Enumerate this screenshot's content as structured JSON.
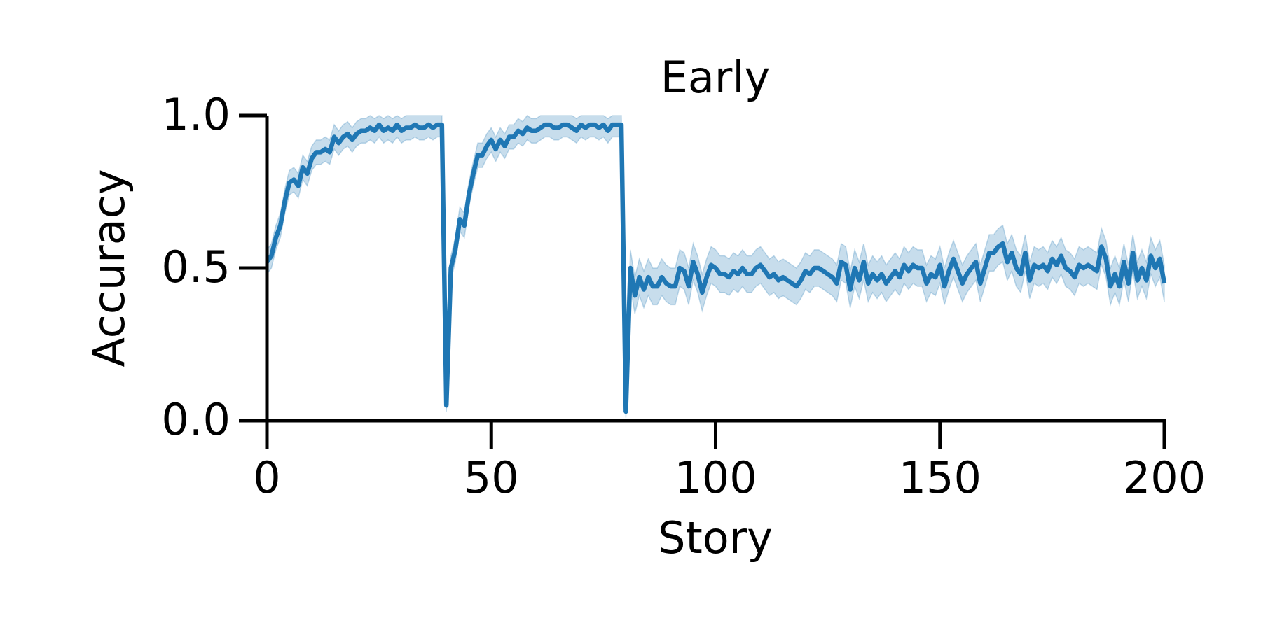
{
  "chart_data": {
    "type": "line",
    "title": "Early",
    "xlabel": "Story",
    "ylabel": "Accuracy",
    "x": [
      0,
      1,
      2,
      3,
      4,
      5,
      6,
      7,
      8,
      9,
      10,
      11,
      12,
      13,
      14,
      15,
      16,
      17,
      18,
      19,
      20,
      21,
      22,
      23,
      24,
      25,
      26,
      27,
      28,
      29,
      30,
      31,
      32,
      33,
      34,
      35,
      36,
      37,
      38,
      39,
      40,
      41,
      42,
      43,
      44,
      45,
      46,
      47,
      48,
      49,
      50,
      51,
      52,
      53,
      54,
      55,
      56,
      57,
      58,
      59,
      60,
      61,
      62,
      63,
      64,
      65,
      66,
      67,
      68,
      69,
      70,
      71,
      72,
      73,
      74,
      75,
      76,
      77,
      78,
      79,
      80,
      81,
      82,
      83,
      84,
      85,
      86,
      87,
      88,
      89,
      90,
      91,
      92,
      93,
      94,
      95,
      96,
      97,
      98,
      99,
      100,
      101,
      102,
      103,
      104,
      105,
      106,
      107,
      108,
      109,
      110,
      111,
      112,
      113,
      114,
      115,
      116,
      117,
      118,
      119,
      120,
      121,
      122,
      123,
      124,
      125,
      126,
      127,
      128,
      129,
      130,
      131,
      132,
      133,
      134,
      135,
      136,
      137,
      138,
      139,
      140,
      141,
      142,
      143,
      144,
      145,
      146,
      147,
      148,
      149,
      150,
      151,
      152,
      153,
      154,
      155,
      156,
      157,
      158,
      159,
      160,
      161,
      162,
      163,
      164,
      165,
      166,
      167,
      168,
      169,
      170,
      171,
      172,
      173,
      174,
      175,
      176,
      177,
      178,
      179,
      180,
      181,
      182,
      183,
      184,
      185,
      186,
      187,
      188,
      189,
      190,
      191,
      192,
      193,
      194,
      195,
      196,
      197,
      198,
      199,
      200
    ],
    "series": [
      {
        "color": "#1f77b4",
        "values": [
          0.52,
          0.54,
          0.6,
          0.64,
          0.72,
          0.78,
          0.79,
          0.77,
          0.83,
          0.81,
          0.86,
          0.88,
          0.88,
          0.89,
          0.88,
          0.93,
          0.91,
          0.93,
          0.94,
          0.92,
          0.94,
          0.95,
          0.95,
          0.96,
          0.95,
          0.97,
          0.95,
          0.96,
          0.95,
          0.97,
          0.95,
          0.96,
          0.96,
          0.97,
          0.96,
          0.96,
          0.97,
          0.96,
          0.97,
          0.97,
          0.05,
          0.5,
          0.56,
          0.66,
          0.64,
          0.74,
          0.81,
          0.87,
          0.87,
          0.9,
          0.92,
          0.89,
          0.92,
          0.9,
          0.93,
          0.93,
          0.95,
          0.94,
          0.96,
          0.95,
          0.95,
          0.96,
          0.97,
          0.97,
          0.96,
          0.96,
          0.97,
          0.97,
          0.96,
          0.95,
          0.97,
          0.96,
          0.97,
          0.97,
          0.96,
          0.97,
          0.95,
          0.97,
          0.97,
          0.97,
          0.03,
          0.5,
          0.41,
          0.47,
          0.43,
          0.47,
          0.44,
          0.44,
          0.47,
          0.45,
          0.44,
          0.44,
          0.5,
          0.49,
          0.44,
          0.52,
          0.48,
          0.42,
          0.47,
          0.51,
          0.5,
          0.48,
          0.48,
          0.47,
          0.49,
          0.48,
          0.5,
          0.48,
          0.48,
          0.5,
          0.51,
          0.49,
          0.47,
          0.48,
          0.46,
          0.47,
          0.46,
          0.45,
          0.44,
          0.46,
          0.49,
          0.48,
          0.5,
          0.5,
          0.49,
          0.48,
          0.47,
          0.45,
          0.52,
          0.51,
          0.43,
          0.5,
          0.46,
          0.52,
          0.45,
          0.48,
          0.46,
          0.48,
          0.45,
          0.47,
          0.49,
          0.47,
          0.51,
          0.49,
          0.51,
          0.5,
          0.5,
          0.45,
          0.48,
          0.47,
          0.51,
          0.44,
          0.49,
          0.53,
          0.49,
          0.45,
          0.48,
          0.5,
          0.52,
          0.45,
          0.5,
          0.55,
          0.55,
          0.57,
          0.58,
          0.52,
          0.55,
          0.5,
          0.48,
          0.55,
          0.46,
          0.51,
          0.5,
          0.51,
          0.49,
          0.53,
          0.51,
          0.54,
          0.5,
          0.49,
          0.47,
          0.51,
          0.5,
          0.51,
          0.5,
          0.49,
          0.57,
          0.53,
          0.44,
          0.48,
          0.44,
          0.52,
          0.45,
          0.55,
          0.46,
          0.5,
          0.46,
          0.54,
          0.5,
          0.53,
          0.45
        ],
        "lower": [
          0.48,
          0.5,
          0.56,
          0.6,
          0.68,
          0.74,
          0.75,
          0.73,
          0.79,
          0.77,
          0.82,
          0.84,
          0.84,
          0.85,
          0.84,
          0.89,
          0.87,
          0.89,
          0.9,
          0.88,
          0.9,
          0.91,
          0.91,
          0.92,
          0.91,
          0.93,
          0.91,
          0.92,
          0.91,
          0.93,
          0.91,
          0.92,
          0.92,
          0.93,
          0.92,
          0.92,
          0.93,
          0.92,
          0.93,
          0.93,
          0.03,
          0.46,
          0.52,
          0.62,
          0.6,
          0.7,
          0.77,
          0.83,
          0.83,
          0.86,
          0.88,
          0.85,
          0.88,
          0.86,
          0.89,
          0.89,
          0.91,
          0.9,
          0.92,
          0.91,
          0.91,
          0.92,
          0.93,
          0.93,
          0.92,
          0.92,
          0.93,
          0.93,
          0.92,
          0.91,
          0.93,
          0.92,
          0.93,
          0.93,
          0.92,
          0.93,
          0.91,
          0.93,
          0.93,
          0.93,
          0.01,
          0.44,
          0.35,
          0.41,
          0.37,
          0.41,
          0.38,
          0.38,
          0.41,
          0.39,
          0.38,
          0.38,
          0.44,
          0.43,
          0.38,
          0.46,
          0.42,
          0.36,
          0.41,
          0.45,
          0.44,
          0.42,
          0.42,
          0.41,
          0.43,
          0.42,
          0.44,
          0.42,
          0.42,
          0.44,
          0.45,
          0.43,
          0.41,
          0.42,
          0.4,
          0.41,
          0.4,
          0.39,
          0.38,
          0.4,
          0.43,
          0.42,
          0.44,
          0.44,
          0.43,
          0.42,
          0.41,
          0.39,
          0.46,
          0.45,
          0.37,
          0.44,
          0.4,
          0.46,
          0.39,
          0.42,
          0.4,
          0.42,
          0.39,
          0.41,
          0.43,
          0.41,
          0.45,
          0.43,
          0.45,
          0.44,
          0.44,
          0.39,
          0.42,
          0.41,
          0.45,
          0.38,
          0.43,
          0.47,
          0.43,
          0.39,
          0.42,
          0.44,
          0.46,
          0.39,
          0.44,
          0.49,
          0.49,
          0.51,
          0.52,
          0.46,
          0.49,
          0.44,
          0.42,
          0.49,
          0.4,
          0.45,
          0.44,
          0.45,
          0.43,
          0.47,
          0.45,
          0.48,
          0.44,
          0.43,
          0.41,
          0.45,
          0.44,
          0.45,
          0.44,
          0.43,
          0.51,
          0.47,
          0.38,
          0.42,
          0.38,
          0.46,
          0.39,
          0.49,
          0.4,
          0.44,
          0.4,
          0.48,
          0.44,
          0.47,
          0.39
        ],
        "upper": [
          0.56,
          0.58,
          0.64,
          0.68,
          0.76,
          0.82,
          0.83,
          0.81,
          0.87,
          0.85,
          0.9,
          0.92,
          0.92,
          0.93,
          0.92,
          0.97,
          0.95,
          0.97,
          0.98,
          0.96,
          0.98,
          0.99,
          0.99,
          1.0,
          0.99,
          1.0,
          0.99,
          1.0,
          0.99,
          1.0,
          0.99,
          1.0,
          1.0,
          1.0,
          1.0,
          1.0,
          1.0,
          1.0,
          1.0,
          1.0,
          0.07,
          0.54,
          0.6,
          0.7,
          0.68,
          0.78,
          0.85,
          0.91,
          0.91,
          0.94,
          0.96,
          0.93,
          0.96,
          0.94,
          0.97,
          0.97,
          0.99,
          0.98,
          1.0,
          0.99,
          0.99,
          1.0,
          1.0,
          1.0,
          1.0,
          1.0,
          1.0,
          1.0,
          1.0,
          0.99,
          1.0,
          1.0,
          1.0,
          1.0,
          1.0,
          1.0,
          0.99,
          1.0,
          1.0,
          1.0,
          0.05,
          0.56,
          0.47,
          0.53,
          0.49,
          0.53,
          0.5,
          0.5,
          0.53,
          0.51,
          0.5,
          0.5,
          0.56,
          0.55,
          0.5,
          0.58,
          0.54,
          0.48,
          0.53,
          0.57,
          0.56,
          0.54,
          0.54,
          0.53,
          0.55,
          0.54,
          0.56,
          0.54,
          0.54,
          0.56,
          0.57,
          0.55,
          0.53,
          0.54,
          0.52,
          0.53,
          0.52,
          0.51,
          0.5,
          0.52,
          0.55,
          0.54,
          0.56,
          0.56,
          0.55,
          0.54,
          0.53,
          0.51,
          0.58,
          0.57,
          0.49,
          0.56,
          0.52,
          0.58,
          0.51,
          0.54,
          0.52,
          0.54,
          0.51,
          0.53,
          0.55,
          0.53,
          0.57,
          0.55,
          0.57,
          0.56,
          0.56,
          0.51,
          0.54,
          0.53,
          0.57,
          0.5,
          0.55,
          0.59,
          0.55,
          0.51,
          0.54,
          0.56,
          0.58,
          0.51,
          0.56,
          0.61,
          0.61,
          0.63,
          0.64,
          0.58,
          0.61,
          0.56,
          0.54,
          0.61,
          0.52,
          0.57,
          0.56,
          0.57,
          0.55,
          0.59,
          0.57,
          0.6,
          0.56,
          0.55,
          0.53,
          0.57,
          0.56,
          0.57,
          0.56,
          0.55,
          0.63,
          0.59,
          0.5,
          0.54,
          0.5,
          0.58,
          0.51,
          0.61,
          0.52,
          0.56,
          0.52,
          0.6,
          0.56,
          0.59,
          0.51
        ]
      }
    ],
    "xlim": [
      0,
      200
    ],
    "xticks": [
      0,
      50,
      100,
      150,
      200
    ],
    "ylim": [
      0,
      1
    ],
    "yticks": [
      {
        "value": 0,
        "label": "0.0"
      },
      {
        "value": 0.5,
        "label": "0.5"
      },
      {
        "value": 1,
        "label": "1.0"
      }
    ]
  }
}
